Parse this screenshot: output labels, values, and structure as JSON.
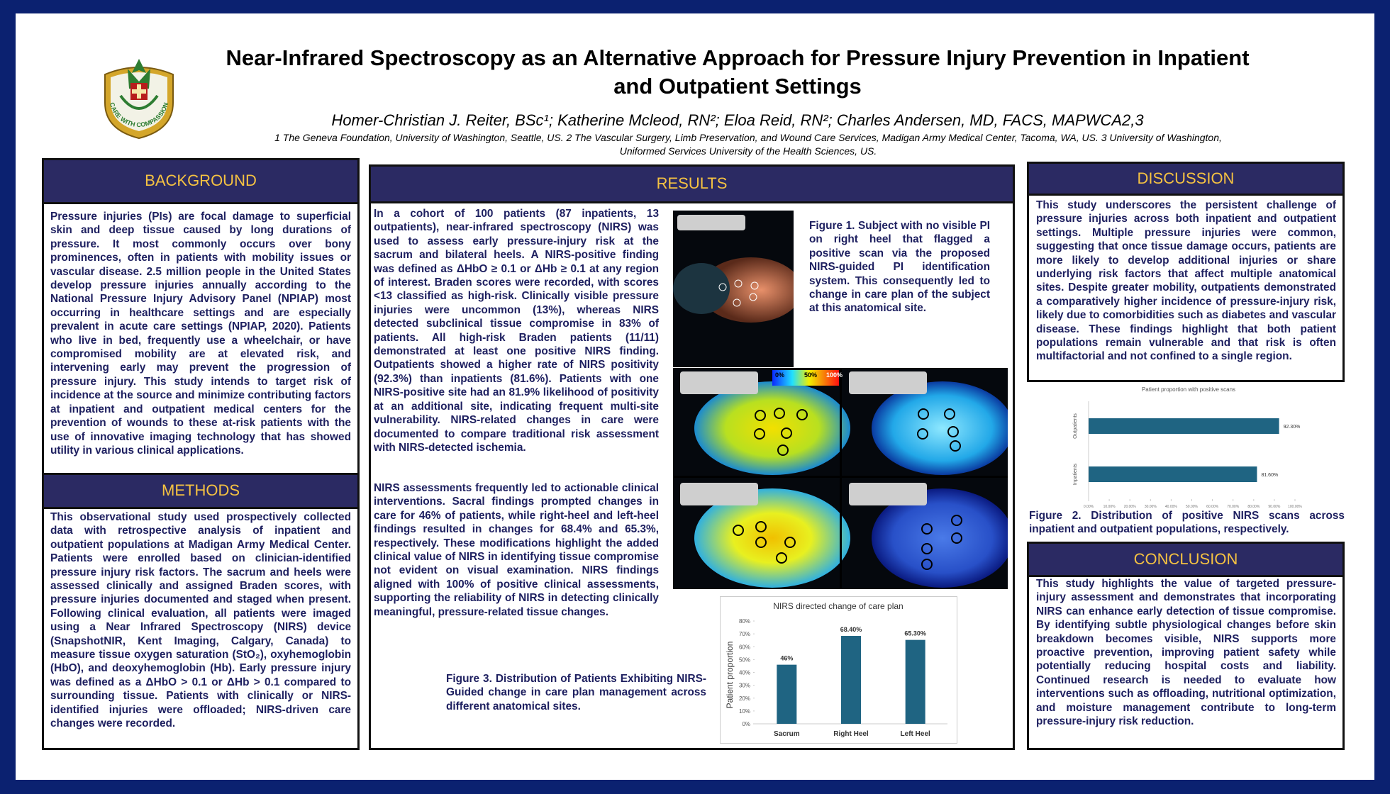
{
  "header": {
    "title": "Near-Infrared Spectroscopy as an Alternative Approach for Pressure Injury Prevention in Inpatient and Outpatient Settings",
    "authors": "Homer-Christian J. Reiter, BSc¹; Katherine Mcleod, RN²; Eloa Reid, RN²;  Charles Andersen, MD, FACS, MAPWCA2,3",
    "affiliations": "1 The Geneva Foundation, University of Washington, Seattle, US. 2 The Vascular Surgery, Limb Preservation, and Wound Care Services, Madigan Army Medical Center, Tacoma, WA, US. 3 University of Washington, Uniformed Services University of the Health Sciences, US."
  },
  "logo": {
    "motto": "CARE WITH COMPASSION"
  },
  "background": {
    "heading": "BACKGROUND",
    "text": "Pressure injuries (PIs) are focal damage to superficial skin and deep tissue caused by long durations of pressure. It most commonly occurs over bony prominences, often in patients with mobility issues or vascular disease. 2.5 million people in the United States develop pressure injuries annually according to the National Pressure Injury Advisory Panel (NPIAP) most occurring in healthcare settings and are especially prevalent in acute care settings (NPIAP, 2020). Patients who live in bed, frequently use a wheelchair, or have compromised mobility are at elevated risk, and intervening early may prevent the progression of pressure injury. This study intends to target risk of incidence at the source and minimize contributing factors at inpatient and outpatient medical centers for the prevention of wounds to these at-risk patients with the use of innovative imaging technology that has showed utility in various clinical applications."
  },
  "methods": {
    "heading": "METHODS",
    "text": "This observational study used prospectively collected data with retrospective analysis of inpatient and outpatient populations at Madigan Army Medical Center. Patients were enrolled based on clinician-identified pressure injury risk factors. The sacrum and heels were assessed clinically and assigned Braden scores, with pressure injuries documented and staged when present. Following clinical evaluation, all patients were imaged using a Near Infrared Spectroscopy (NIRS) device (SnapshotNIR, Kent Imaging, Calgary, Canada) to measure tissue oxygen saturation (StO₂), oxyhemoglobin (HbO), and deoxyhemoglobin (Hb). Early pressure injury was defined as a ΔHbO > 0.1 or ΔHb > 0.1 compared to surrounding tissue. Patients with clinically or NIRS-identified injuries were offloaded; NIRS-driven care changes were recorded."
  },
  "results": {
    "heading": "RESULTS",
    "paragraphs": [
      "In a cohort of 100 patients (87 inpatients, 13 outpatients), near-infrared spectroscopy (NIRS) was used to assess early pressure-injury risk at the sacrum and bilateral heels. A NIRS-positive finding was defined as ΔHbO ≥ 0.1 or ΔHb ≥ 0.1 at any region of interest. Braden scores were recorded, with scores <13 classified as high-risk. Clinically visible pressure injuries were uncommon (13%), whereas NIRS detected subclinical tissue compromise in 83% of patients. All high-risk Braden patients (11/11) demonstrated at least one positive NIRS finding. Outpatients showed a higher rate of NIRS positivity (92.3%) than inpatients (81.6%). Patients with one NIRS-positive site had an 81.9% likelihood of positivity at an additional site, indicating frequent multi-site vulnerability. NIRS-related changes in care were documented to compare traditional risk assessment with NIRS-detected ischemia.",
      "NIRS assessments frequently led to actionable clinical interventions. Sacral findings prompted changes in care for 46% of patients, while right-heel and left-heel findings resulted in changes for 68.4% and 65.3%, respectively. These modifications highlight the added clinical value of NIRS in identifying tissue compromise not evident on visual examination. NIRS findings aligned with 100% of positive clinical assessments, supporting the reliability of NIRS in detecting clinically meaningful, pressure-related tissue changes."
    ],
    "figure1_caption": "Figure 1. Subject with no visible PI on right heel that flagged a positive scan via the proposed NIRS-guided PI identification system. This consequently led to change in care plan of the subject at this anatomical site.",
    "heatmap_scale": [
      "0%",
      "50%",
      "100%"
    ],
    "figure3_caption": "Figure 3. Distribution of Patients Exhibiting NIRS-Guided change in care plan management across different anatomical sites.",
    "figure3_chart": {
      "type": "bar",
      "title": "NIRS directed change of care plan",
      "y_label": "Patient proportion",
      "categories": [
        "Sacrum",
        "Right Heel",
        "Left Heel"
      ],
      "values": [
        46,
        68.4,
        65.3
      ],
      "value_labels": [
        "46%",
        "68.40%",
        "65.30%"
      ],
      "color": "#1f6482",
      "ylim": [
        0,
        80
      ],
      "yticks": [
        {
          "value": 0,
          "label": "0%"
        },
        {
          "value": 10,
          "label": "10%"
        },
        {
          "value": 20,
          "label": "20%"
        },
        {
          "value": 30,
          "label": "30%"
        },
        {
          "value": 40,
          "label": "40%"
        },
        {
          "value": 50,
          "label": "50%"
        },
        {
          "value": 60,
          "label": "60%"
        },
        {
          "value": 70,
          "label": "70%"
        },
        {
          "value": 80,
          "label": "80%"
        }
      ]
    }
  },
  "discussion": {
    "heading": "DISCUSSION",
    "text": "This study underscores the persistent challenge of pressure injuries across both inpatient and outpatient settings. Multiple pressure injuries were common, suggesting that once tissue damage occurs, patients are more likely to develop additional injuries or share underlying risk factors that affect multiple anatomical sites. Despite greater mobility, outpatients demonstrated a comparatively higher incidence of pressure-injury risk, likely due to comorbidities such as diabetes and vascular disease. These findings highlight that both patient populations remain vulnerable and that risk is often multifactorial and not confined to a single region.",
    "figure2_chart": {
      "type": "hbar",
      "title": "Patient proportion with positive scans",
      "categories": [
        "Outpatients",
        "Inpatients"
      ],
      "values": [
        92.3,
        81.6
      ],
      "value_labels": [
        "92.30%",
        "81.60%"
      ],
      "color": "#1f6482",
      "xlim": [
        0,
        100
      ],
      "xticks": [
        {
          "value": 0,
          "label": "0.00%"
        },
        {
          "value": 10,
          "label": "10.00%"
        },
        {
          "value": 20,
          "label": "20.00%"
        },
        {
          "value": 30,
          "label": "30.00%"
        },
        {
          "value": 40,
          "label": "40.00%"
        },
        {
          "value": 50,
          "label": "50.00%"
        },
        {
          "value": 60,
          "label": "60.00%"
        },
        {
          "value": 70,
          "label": "70.00%"
        },
        {
          "value": 80,
          "label": "80.00%"
        },
        {
          "value": 90,
          "label": "90.00%"
        },
        {
          "value": 100,
          "label": "100.00%"
        }
      ]
    },
    "figure2_caption": "Figure 2. Distribution of positive NIRS scans across inpatient and outpatient populations, respectively."
  },
  "conclusion": {
    "heading": "CONCLUSION",
    "text": "This study highlights the value of targeted pressure-injury assessment and demonstrates that incorporating NIRS can enhance early detection of tissue compromise. By identifying subtle physiological changes before skin breakdown becomes visible, NIRS supports more proactive prevention, improving patient safety while potentially reducing hospital costs and liability. Continued research is needed to evaluate how interventions such as offloading, nutritional optimization, and moisture management contribute to long-term pressure-injury risk reduction."
  }
}
